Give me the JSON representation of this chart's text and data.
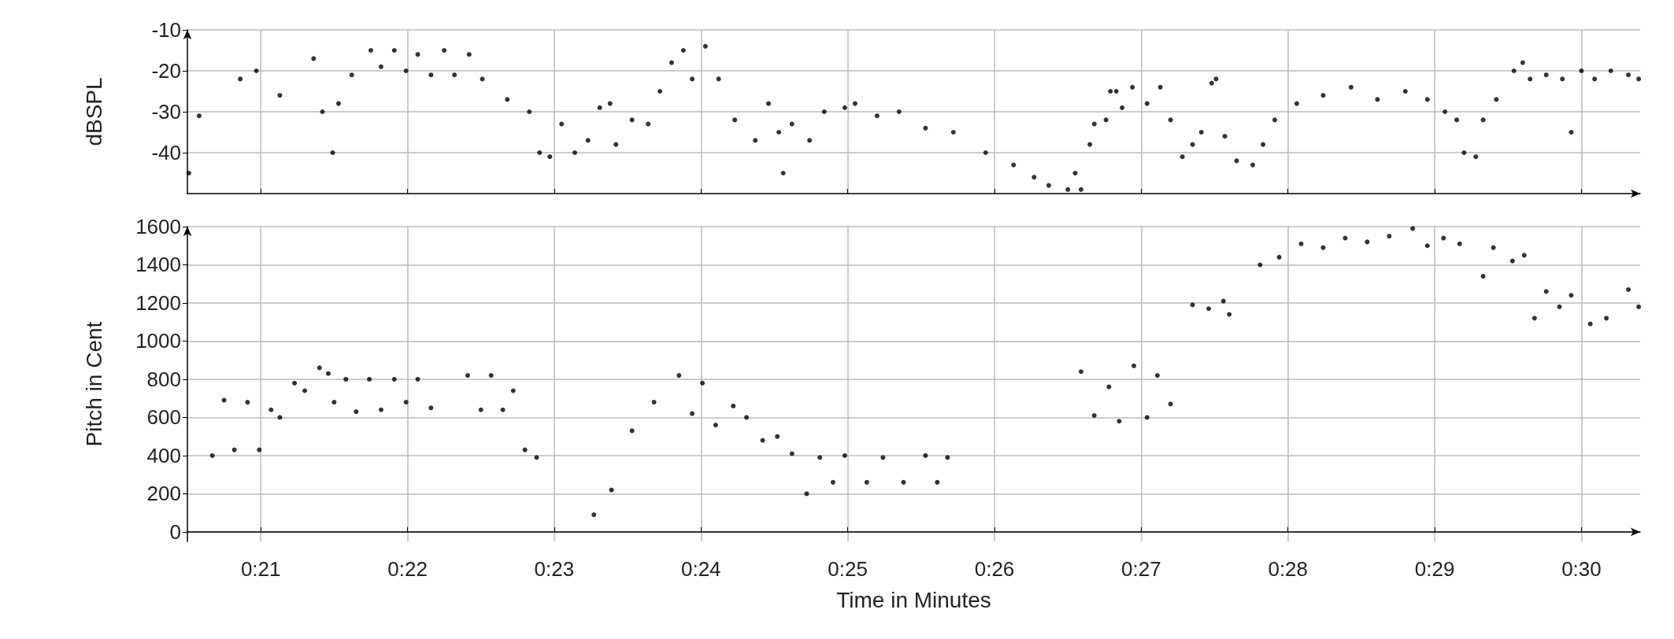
{
  "chart_data": [
    {
      "type": "scatter",
      "ylabel": "dBSPL",
      "xlim": [
        20.5,
        30.4
      ],
      "ylim": [
        -50,
        -10
      ],
      "yticks": [
        -10,
        -20,
        -30,
        -40
      ],
      "xticks": [
        {
          "value": 21,
          "label": null
        },
        {
          "value": 22,
          "label": null
        },
        {
          "value": 23,
          "label": null
        },
        {
          "value": 24,
          "label": null
        },
        {
          "value": 25,
          "label": null
        },
        {
          "value": 26,
          "label": null
        },
        {
          "value": 27,
          "label": null
        },
        {
          "value": 28,
          "label": null
        },
        {
          "value": 29,
          "label": null
        },
        {
          "value": 30,
          "label": null
        }
      ],
      "tick_labels": "y",
      "grid": true,
      "marker": "circle",
      "series": [
        {
          "color": "#000000",
          "x": [
            20.51,
            20.58,
            20.86,
            20.97,
            21.13,
            21.36,
            21.42,
            21.49,
            21.53,
            21.62,
            21.75,
            21.82,
            21.91,
            21.99,
            22.07,
            22.16,
            22.25,
            22.32,
            22.42,
            22.51,
            22.68,
            22.83,
            22.9,
            22.97,
            23.05,
            23.14,
            23.23,
            23.31,
            23.38,
            23.42,
            23.53,
            23.64,
            23.72,
            23.8,
            23.88,
            23.94,
            24.03,
            24.12,
            24.23,
            24.37,
            24.46,
            24.53,
            24.56,
            24.62,
            24.74,
            24.84,
            24.98,
            25.05,
            25.2,
            25.35,
            25.53,
            25.72,
            25.94,
            26.13,
            26.27,
            26.37,
            26.5,
            26.55,
            26.59,
            26.65,
            26.68,
            26.76,
            26.79,
            26.83,
            26.87,
            26.94,
            27.04,
            27.13,
            27.2,
            27.28,
            27.35,
            27.41,
            27.48,
            27.51,
            27.57,
            27.65,
            27.76,
            27.83,
            27.91,
            28.06,
            28.24,
            28.43,
            28.61,
            28.8,
            28.95,
            29.07,
            29.15,
            29.2,
            29.28,
            29.33,
            29.42,
            29.54,
            29.6,
            29.65,
            29.76,
            29.87,
            29.93,
            30.0,
            30.09,
            30.2,
            30.32,
            30.39
          ],
          "values": [
            -45,
            -31,
            -22,
            -20,
            -26,
            -17,
            -30,
            -40,
            -28,
            -21,
            -15,
            -19,
            -15,
            -20,
            -16,
            -21,
            -15,
            -21,
            -16,
            -22,
            -27,
            -30,
            -40,
            -41,
            -33,
            -40,
            -37,
            -29,
            -28,
            -38,
            -32,
            -33,
            -25,
            -18,
            -15,
            -22,
            -14,
            -22,
            -32,
            -37,
            -28,
            -35,
            -45,
            -33,
            -37,
            -30,
            -29,
            -28,
            -31,
            -30,
            -34,
            -35,
            -40,
            -43,
            -46,
            -48,
            -49,
            -45,
            -49,
            -38,
            -33,
            -32,
            -25,
            -25,
            -29,
            -24,
            -28,
            -24,
            -32,
            -41,
            -38,
            -35,
            -23,
            -22,
            -36,
            -42,
            -43,
            -38,
            -32,
            -28,
            -26,
            -24,
            -27,
            -25,
            -27,
            -30,
            -32,
            -40,
            -41,
            -32,
            -27,
            -20,
            -18,
            -22,
            -21,
            -22,
            -35,
            -20,
            -22,
            -20,
            -21,
            -22
          ]
        }
      ]
    },
    {
      "type": "scatter",
      "xlabel": "Time in Minutes",
      "ylabel": "Pitch in Cent",
      "xlim": [
        20.5,
        30.4
      ],
      "ylim": [
        -50,
        1600
      ],
      "yticks": [
        0,
        200,
        400,
        600,
        800,
        1000,
        1200,
        1400,
        1600
      ],
      "xticks": [
        {
          "value": 21,
          "label": "0:21"
        },
        {
          "value": 22,
          "label": "0:22"
        },
        {
          "value": 23,
          "label": "0:23"
        },
        {
          "value": 24,
          "label": "0:24"
        },
        {
          "value": 25,
          "label": "0:25"
        },
        {
          "value": 26,
          "label": "0:26"
        },
        {
          "value": 27,
          "label": "0:27"
        },
        {
          "value": 28,
          "label": "0:28"
        },
        {
          "value": 29,
          "label": "0:29"
        },
        {
          "value": 30,
          "label": "0:30"
        }
      ],
      "grid": true,
      "marker": "circle",
      "series": [
        {
          "color": "#000000",
          "x": [
            20.67,
            20.75,
            20.82,
            20.91,
            20.99,
            21.07,
            21.13,
            21.23,
            21.3,
            21.4,
            21.46,
            21.5,
            21.58,
            21.65,
            21.74,
            21.82,
            21.91,
            21.99,
            22.07,
            22.16,
            22.41,
            22.5,
            22.57,
            22.65,
            22.72,
            22.8,
            22.88,
            23.27,
            23.39,
            23.53,
            23.68,
            23.85,
            23.94,
            24.01,
            24.1,
            24.22,
            24.31,
            24.42,
            24.52,
            24.62,
            24.72,
            24.81,
            24.9,
            24.98,
            25.13,
            25.24,
            25.38,
            25.53,
            25.61,
            25.68,
            26.59,
            26.68,
            26.78,
            26.85,
            26.95,
            27.04,
            27.11,
            27.2,
            27.35,
            27.46,
            27.56,
            27.6,
            27.81,
            27.94,
            28.09,
            28.24,
            28.39,
            28.54,
            28.69,
            28.85,
            28.95,
            29.06,
            29.17,
            29.33,
            29.4,
            29.53,
            29.61,
            29.68,
            29.76,
            29.85,
            29.93,
            30.06,
            30.17,
            30.32,
            30.39
          ],
          "values": [
            400,
            690,
            430,
            680,
            430,
            640,
            600,
            780,
            740,
            860,
            830,
            680,
            800,
            630,
            800,
            640,
            800,
            680,
            800,
            650,
            820,
            640,
            820,
            640,
            740,
            430,
            390,
            90,
            220,
            530,
            680,
            820,
            620,
            780,
            560,
            660,
            600,
            480,
            500,
            410,
            200,
            390,
            260,
            400,
            260,
            390,
            260,
            400,
            260,
            390,
            840,
            610,
            760,
            580,
            870,
            600,
            820,
            670,
            1190,
            1170,
            1210,
            1140,
            1400,
            1440,
            1510,
            1490,
            1540,
            1520,
            1550,
            1590,
            1500,
            1540,
            1510,
            1340,
            1490,
            1420,
            1450,
            1120,
            1260,
            1180,
            1240,
            1090,
            1120,
            1270,
            1180
          ]
        }
      ]
    }
  ]
}
